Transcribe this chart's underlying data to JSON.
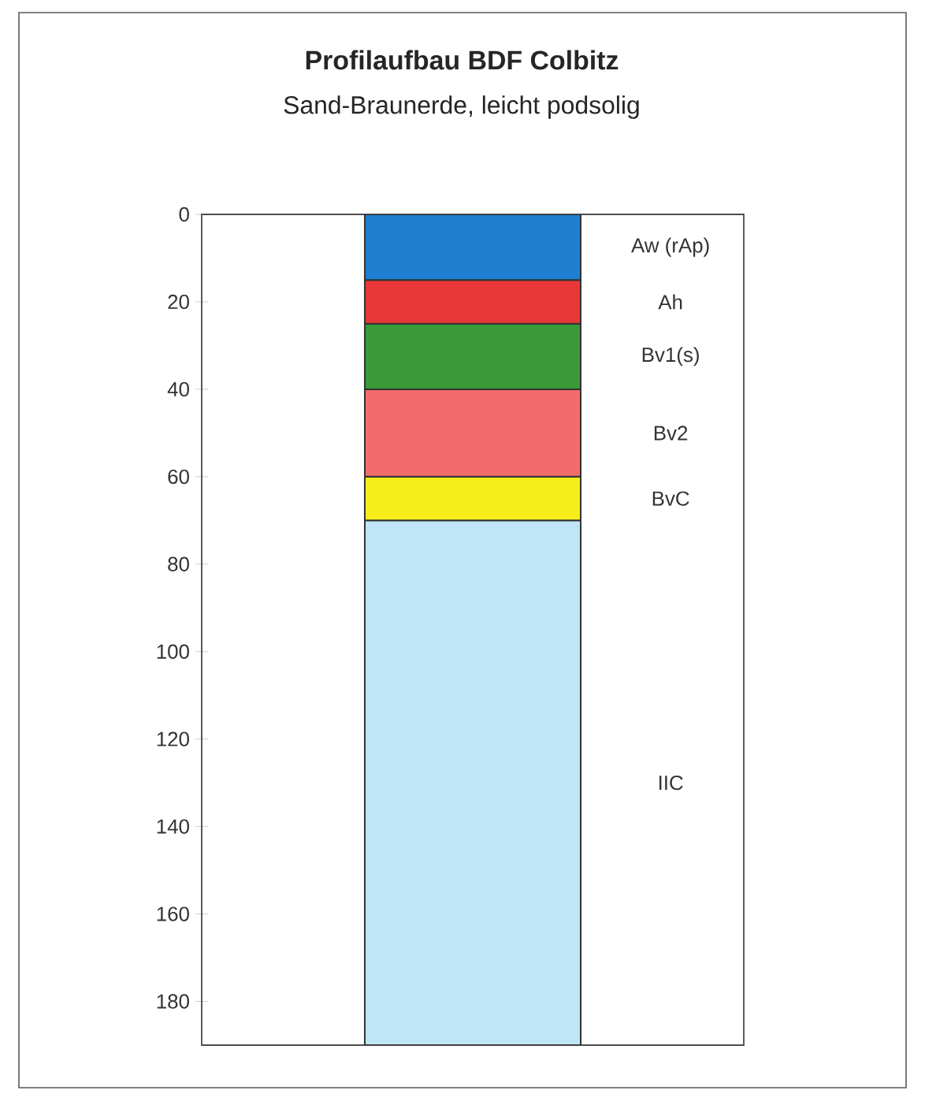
{
  "chart_data": {
    "type": "bar",
    "title": "Profilaufbau BDF Colbitz",
    "subtitle": "Sand-Braunerde, leicht podsolig",
    "categories": [
      null
    ],
    "stacked": true,
    "ylim": [
      190,
      0
    ],
    "yticks": [
      0,
      20,
      40,
      60,
      80,
      100,
      120,
      140,
      160,
      180
    ],
    "legend": false,
    "series": [
      {
        "name": "Aw (rAp)",
        "color": "#1e7fd0",
        "values": [
          15
        ]
      },
      {
        "name": "Ah",
        "color": "#e83838",
        "values": [
          10
        ]
      },
      {
        "name": "Bv1(s)",
        "color": "#3a9a3a",
        "values": [
          15
        ]
      },
      {
        "name": "Bv2",
        "color": "#f26c6c",
        "values": [
          20
        ]
      },
      {
        "name": "BvC",
        "color": "#f5ee1a",
        "values": [
          10
        ]
      },
      {
        "name": "IIC",
        "color": "#bfe6f6",
        "values": [
          120
        ]
      }
    ]
  }
}
